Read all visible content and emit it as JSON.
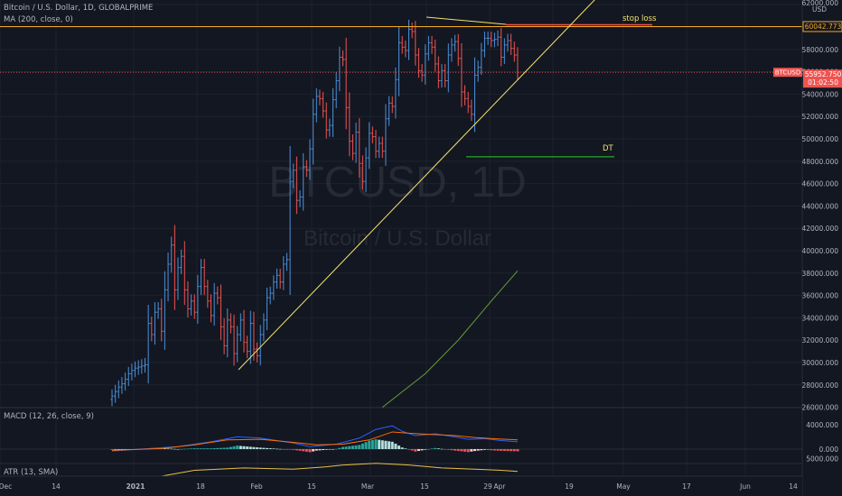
{
  "header": {
    "symbol_line": "Bitcoin / U.S. Dollar, 1D, GLOBALPRIME",
    "ma_line": "MA (200, close, 0)"
  },
  "watermark": {
    "ticker": "BTCUSD, 1D",
    "name": "Bitcoin / U.S. Dollar"
  },
  "price_axis": {
    "currency": "USD",
    "top_label": "62000.000",
    "ticks": [
      "58000.000",
      "56000.000",
      "54000.000",
      "52000.000",
      "50000.000",
      "48000.000",
      "46000.000",
      "44000.000",
      "42000.000",
      "40000.000",
      "38000.000",
      "36000.000",
      "34000.000",
      "32000.000",
      "30000.000",
      "28000.000",
      "26000.000"
    ]
  },
  "tags": {
    "stop_price": "60042.773",
    "last_symbol": "BTCUSD",
    "last_price": "55952.750",
    "countdown": "01:02:50"
  },
  "annotations": {
    "stop_loss": "stop loss",
    "dt": "DT"
  },
  "macd": {
    "label": "MACD (12, 26, close, 9)",
    "ticks": [
      "4000.000",
      "0.000"
    ]
  },
  "atr": {
    "label": "ATR (13, SMA)",
    "tick": "5000.000"
  },
  "time_axis": [
    "Dec",
    "14",
    "2021",
    "18",
    "Feb",
    "15",
    "Mar",
    "15",
    "29",
    "Apr",
    "19",
    "May",
    "17",
    "Jun",
    "14"
  ],
  "colors": {
    "background": "#131722",
    "up": "#4a90d9",
    "down": "#ef5350",
    "stop_line": "#f5a623",
    "last_price": "#ef5350",
    "trendline": "#f2e36b",
    "ma_line": "#6a9a3a",
    "dt_line": "#2bcb2b",
    "macd_line": "#2962ff",
    "signal_line": "#ff6d00",
    "atr_line": "#e5c244"
  },
  "chart_data": {
    "type": "ohlc",
    "x_axis_labels": [
      "Dec",
      "14",
      "2021",
      "18",
      "Feb",
      "15",
      "Mar",
      "15",
      "29",
      "Apr",
      "19",
      "May",
      "17",
      "Jun",
      "14"
    ],
    "ylim": [
      25000,
      62500
    ],
    "levels": {
      "stop_loss": 60042.773,
      "last": 55952.75,
      "dt": 48400
    },
    "closes": [
      27000,
      27400,
      27800,
      28100,
      28500,
      29000,
      29300,
      29500,
      29600,
      29700,
      29800,
      33500,
      32500,
      34500,
      34800,
      32800,
      36500,
      38800,
      40500,
      36500,
      38500,
      39500,
      36500,
      34800,
      35500,
      34500,
      36800,
      38500,
      36800,
      35500,
      34200,
      36200,
      35800,
      33200,
      31500,
      33800,
      33200,
      30800,
      32500,
      33800,
      31800,
      31000,
      33500,
      31200,
      30600,
      32500,
      33800,
      35800,
      36200,
      37200,
      37800,
      37200,
      38800,
      39200,
      46200,
      47200,
      44500,
      44800,
      47500,
      47200,
      49100,
      52200,
      53800,
      53600,
      52500,
      50800,
      51200,
      53500,
      55200,
      57300,
      57100,
      52800,
      49800,
      48700,
      50600,
      47800,
      46200,
      48300,
      50500,
      50200,
      48900,
      49600,
      48900,
      51800,
      53200,
      52900,
      55300,
      58600,
      58200,
      57900,
      59800,
      59600,
      57500,
      56100,
      55700,
      57600,
      58600,
      58200,
      56700,
      55200,
      56100,
      55200,
      57500,
      58400,
      58700,
      57200,
      54200,
      53600,
      52900,
      52200,
      55700,
      56400,
      57900,
      59000,
      59000,
      58800,
      58900,
      59100,
      57300,
      58400,
      58800,
      58100,
      57500,
      55950
    ],
    "macd_line_points": [
      [
        0,
        -300
      ],
      [
        20,
        400
      ],
      [
        30,
        1200
      ],
      [
        38,
        2000
      ],
      [
        45,
        1800
      ],
      [
        55,
        1000
      ],
      [
        60,
        400
      ],
      [
        68,
        800
      ],
      [
        75,
        1800
      ],
      [
        80,
        3200
      ],
      [
        85,
        3800
      ],
      [
        88,
        2900
      ],
      [
        92,
        2200
      ],
      [
        98,
        2500
      ],
      [
        104,
        2000
      ],
      [
        108,
        1600
      ],
      [
        113,
        1700
      ],
      [
        118,
        1400
      ],
      [
        123,
        1200
      ]
    ],
    "signal_line_points": [
      [
        0,
        -200
      ],
      [
        15,
        100
      ],
      [
        25,
        700
      ],
      [
        35,
        1500
      ],
      [
        45,
        1600
      ],
      [
        55,
        1100
      ],
      [
        62,
        700
      ],
      [
        70,
        800
      ],
      [
        78,
        1500
      ],
      [
        85,
        2800
      ],
      [
        90,
        2600
      ],
      [
        96,
        2400
      ],
      [
        104,
        2200
      ],
      [
        110,
        1900
      ],
      [
        116,
        1700
      ],
      [
        123,
        1500
      ]
    ],
    "atr_points": [
      [
        0,
        1500
      ],
      [
        15,
        2000
      ],
      [
        25,
        3000
      ],
      [
        40,
        3400
      ],
      [
        55,
        3200
      ],
      [
        65,
        3600
      ],
      [
        70,
        3900
      ],
      [
        80,
        4200
      ],
      [
        90,
        3900
      ],
      [
        100,
        3400
      ],
      [
        110,
        3200
      ],
      [
        118,
        3000
      ],
      [
        123,
        2800
      ]
    ],
    "ma200_points": [
      [
        82,
        26000
      ],
      [
        95,
        29000
      ],
      [
        105,
        32000
      ],
      [
        115,
        35500
      ],
      [
        123,
        38200
      ]
    ]
  }
}
